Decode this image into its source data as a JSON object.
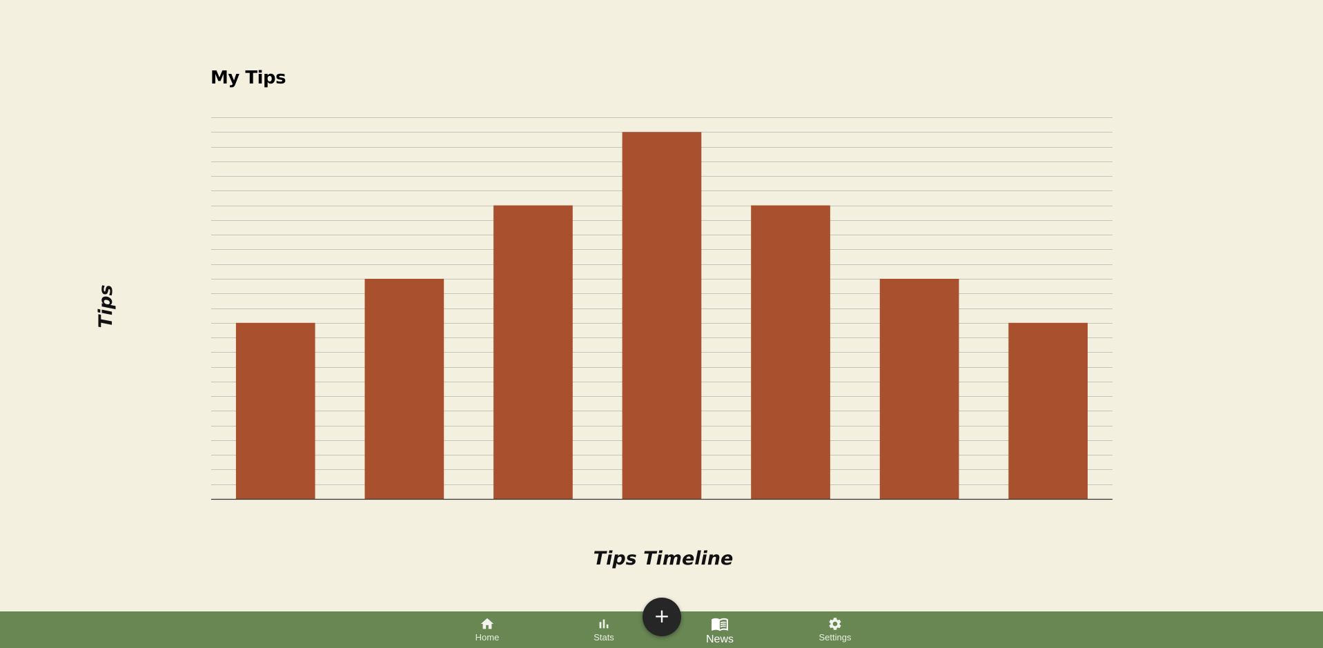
{
  "page": {
    "title": "My Tips"
  },
  "chart_data": {
    "type": "bar",
    "title": "My Tips",
    "xlabel": "Tips Timeline",
    "ylabel": "Tips",
    "categories": [
      "",
      "",
      "",
      "",
      "",
      "",
      ""
    ],
    "values": [
      12,
      15,
      20,
      25,
      20,
      15,
      12
    ],
    "ylim": [
      0,
      26
    ],
    "grid": true,
    "bar_color": "#a9502f",
    "grid_color": "#c4c4be"
  },
  "nav": {
    "background": "#688753",
    "items": [
      {
        "label": "Home",
        "icon": "home-icon"
      },
      {
        "label": "Stats",
        "icon": "bar-chart-icon"
      },
      {
        "label": "News",
        "icon": "newspaper-icon",
        "active": true
      },
      {
        "label": "Settings",
        "icon": "gear-icon"
      }
    ],
    "fab": {
      "label": "+",
      "icon": "plus-icon"
    }
  }
}
